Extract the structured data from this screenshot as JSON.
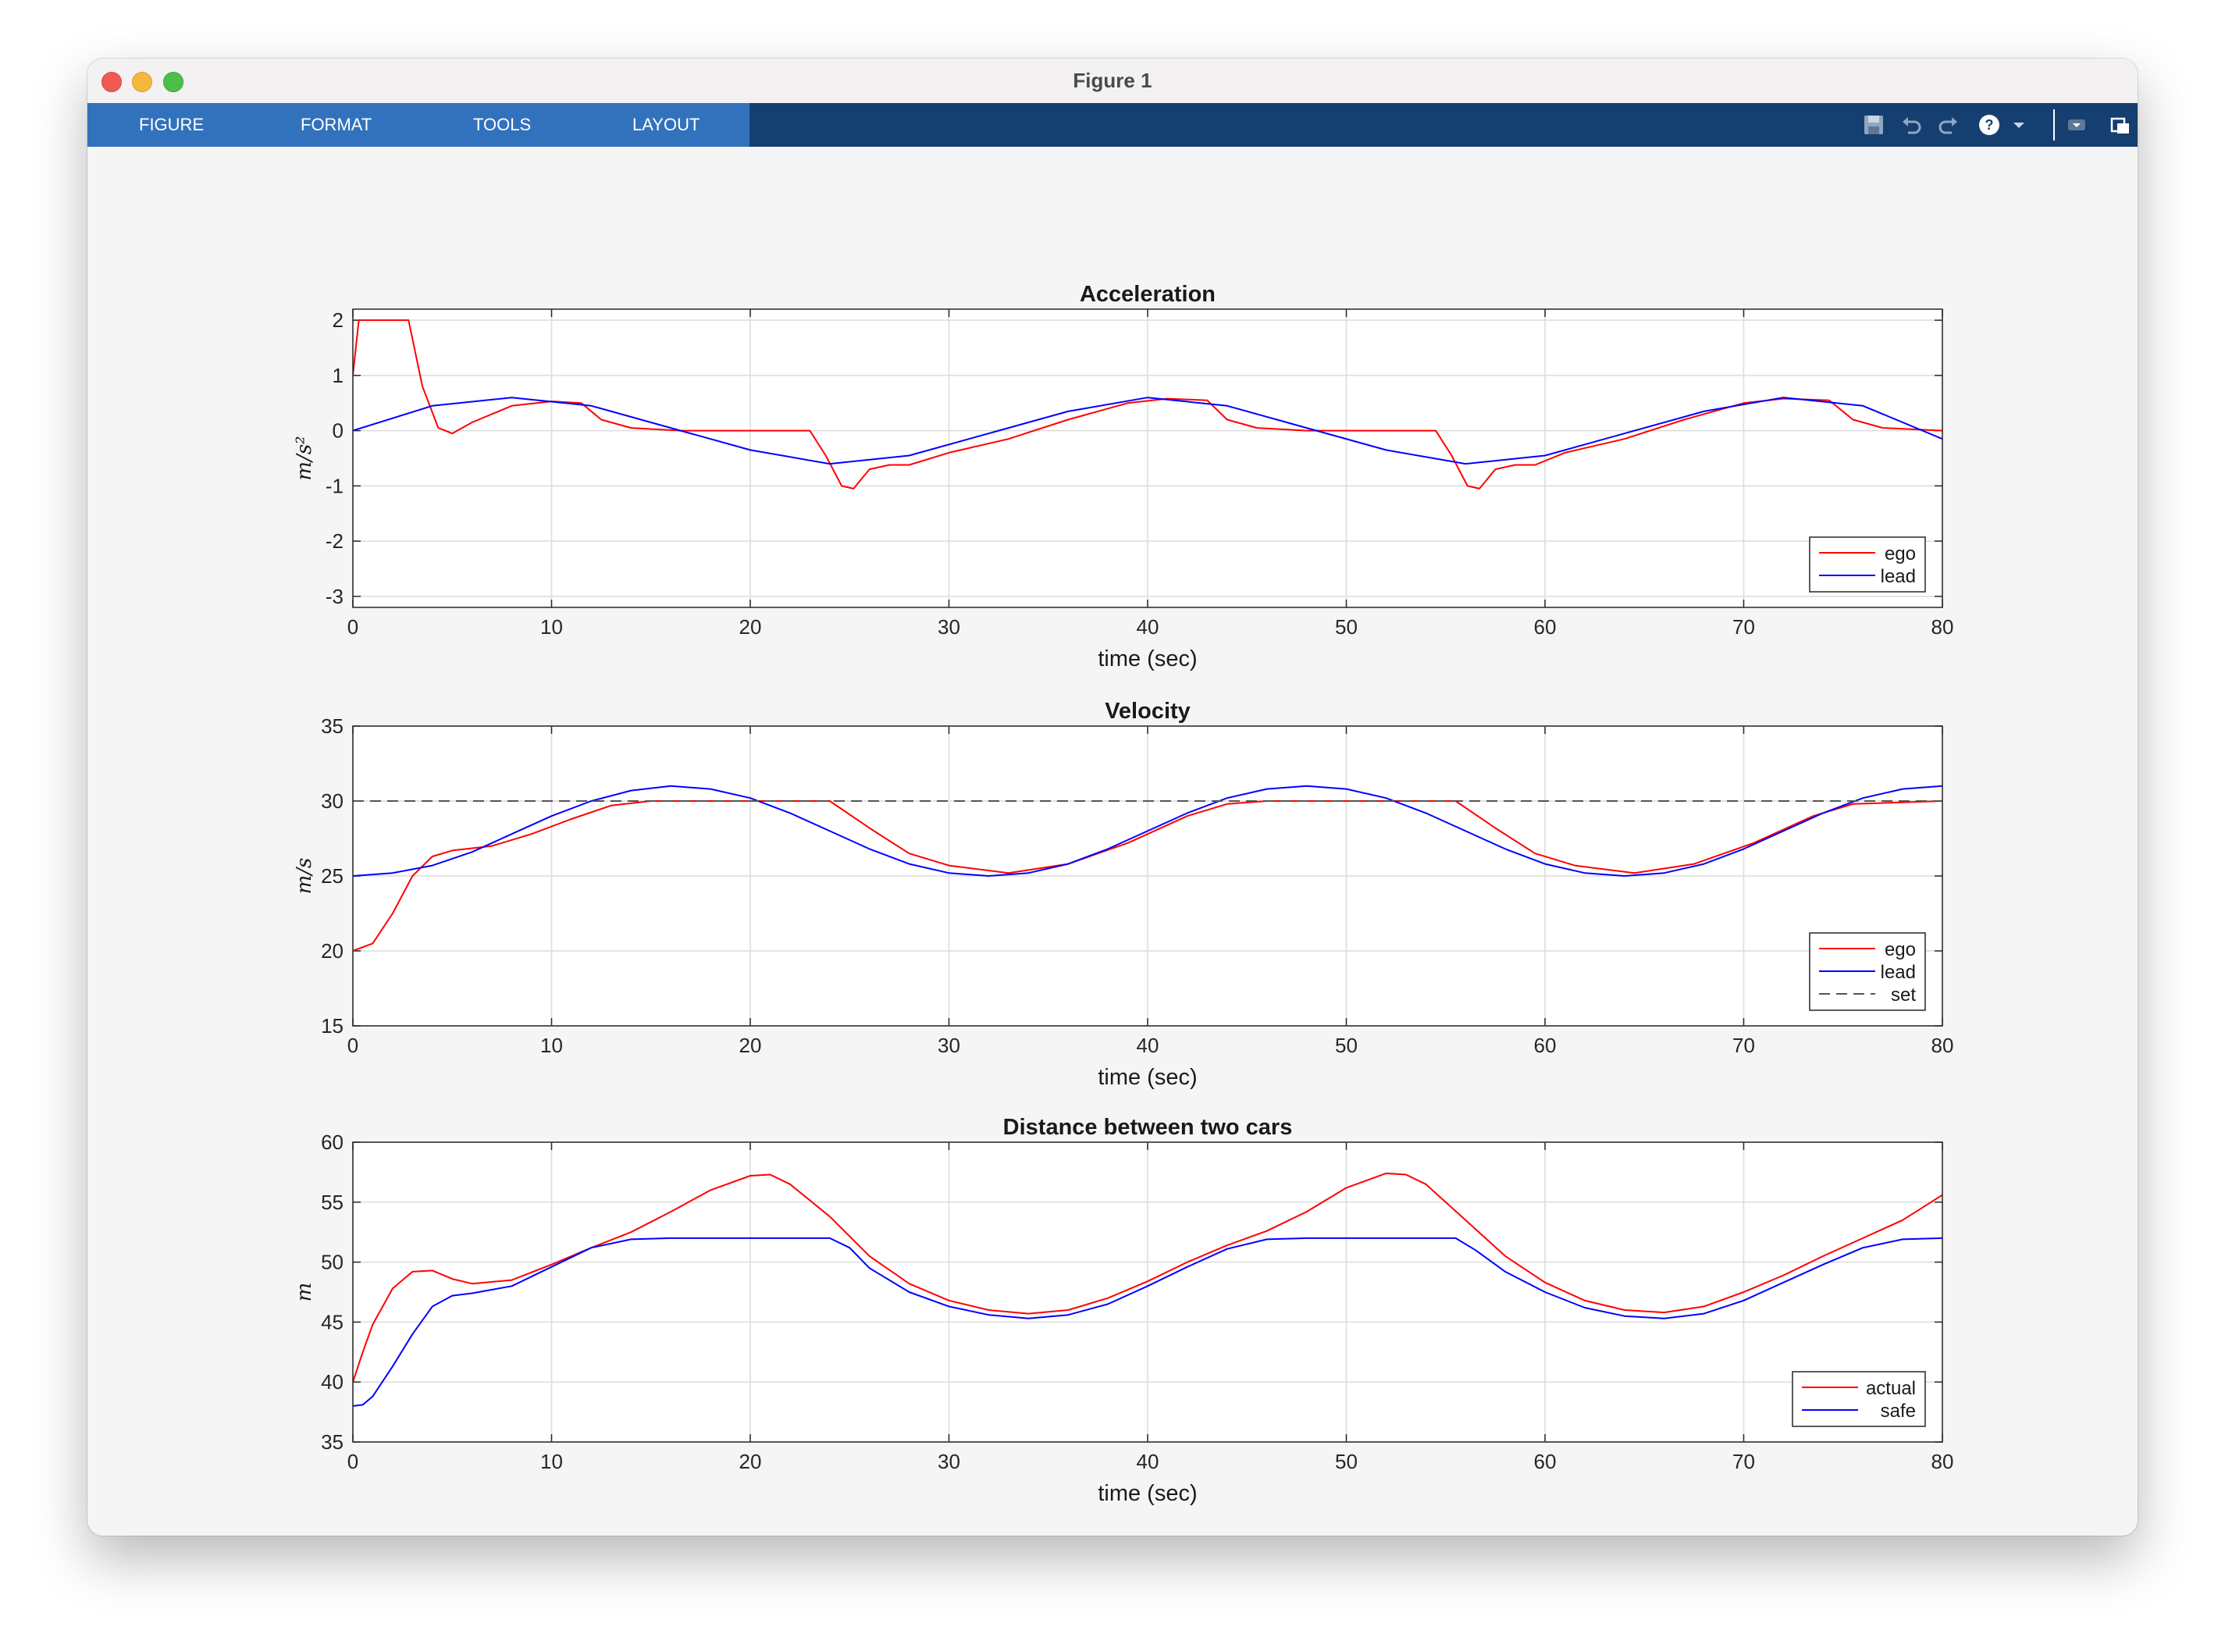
{
  "window": {
    "title": "Figure 1"
  },
  "toolstrip": {
    "tabs": [
      "FIGURE",
      "FORMAT",
      "TOOLS",
      "LAYOUT"
    ],
    "icons": [
      "save-icon",
      "undo-icon",
      "redo-icon",
      "help-icon",
      "help-dropdown-icon",
      "quick-access-dropdown-icon",
      "undock-icon"
    ]
  },
  "colors": {
    "ego": "#ff0000",
    "lead": "#0000ff",
    "set": "#555555",
    "tab_bar": "#3272bd",
    "toolstrip": "#153f70"
  },
  "chart_data": [
    {
      "type": "line",
      "title": "Acceleration",
      "xlabel": "time (sec)",
      "ylabel": "m/s²",
      "xlim": [
        0,
        80
      ],
      "ylim": [
        -3.2,
        2.2
      ],
      "xticks": [
        "0",
        "10",
        "20",
        "30",
        "40",
        "50",
        "60",
        "70",
        "80"
      ],
      "yticks": [
        "2",
        "1",
        "0",
        "-1",
        "-2",
        "-3"
      ],
      "grid": true,
      "legend": "bottom-right",
      "series": [
        {
          "name": "ego",
          "color": "#ff0000",
          "dash": "",
          "points": [
            [
              0,
              1.0
            ],
            [
              0.3,
              2.0
            ],
            [
              2.8,
              2.0
            ],
            [
              3.5,
              0.8
            ],
            [
              4.3,
              0.05
            ],
            [
              5,
              -0.05
            ],
            [
              6,
              0.15
            ],
            [
              8,
              0.45
            ],
            [
              10,
              0.53
            ],
            [
              11.5,
              0.5
            ],
            [
              12.5,
              0.2
            ],
            [
              14,
              0.05
            ],
            [
              16.5,
              0.0
            ],
            [
              23,
              0.0
            ],
            [
              23.8,
              -0.45
            ],
            [
              24.6,
              -1.0
            ],
            [
              25.2,
              -1.05
            ],
            [
              26,
              -0.7
            ],
            [
              27,
              -0.62
            ],
            [
              28,
              -0.62
            ],
            [
              30,
              -0.4
            ],
            [
              33,
              -0.15
            ],
            [
              36,
              0.2
            ],
            [
              39,
              0.5
            ],
            [
              41,
              0.58
            ],
            [
              43,
              0.55
            ],
            [
              44,
              0.2
            ],
            [
              45.5,
              0.05
            ],
            [
              48,
              0.0
            ],
            [
              54.5,
              0.0
            ],
            [
              55.3,
              -0.45
            ],
            [
              56.1,
              -1.0
            ],
            [
              56.7,
              -1.05
            ],
            [
              57.5,
              -0.7
            ],
            [
              58.5,
              -0.62
            ],
            [
              59.5,
              -0.62
            ],
            [
              61,
              -0.4
            ],
            [
              64,
              -0.15
            ],
            [
              67,
              0.2
            ],
            [
              70,
              0.5
            ],
            [
              72,
              0.58
            ],
            [
              74.3,
              0.55
            ],
            [
              75.5,
              0.2
            ],
            [
              77,
              0.05
            ],
            [
              80,
              0.0
            ]
          ]
        },
        {
          "name": "lead",
          "color": "#0000ff",
          "dash": "",
          "points": [
            [
              0,
              0.0
            ],
            [
              4,
              0.45
            ],
            [
              8,
              0.6
            ],
            [
              12,
              0.45
            ],
            [
              16,
              0.05
            ],
            [
              20,
              -0.35
            ],
            [
              24,
              -0.6
            ],
            [
              28,
              -0.45
            ],
            [
              32,
              -0.05
            ],
            [
              36,
              0.35
            ],
            [
              40,
              0.6
            ],
            [
              44,
              0.45
            ],
            [
              48,
              0.05
            ],
            [
              52,
              -0.35
            ],
            [
              56,
              -0.6
            ],
            [
              60,
              -0.45
            ],
            [
              64,
              -0.05
            ],
            [
              68,
              0.35
            ],
            [
              72,
              0.6
            ],
            [
              76,
              0.45
            ],
            [
              80,
              -0.15
            ]
          ]
        }
      ]
    },
    {
      "type": "line",
      "title": "Velocity",
      "xlabel": "time (sec)",
      "ylabel": "m/s",
      "xlim": [
        0,
        80
      ],
      "ylim": [
        15,
        35
      ],
      "xticks": [
        "0",
        "10",
        "20",
        "30",
        "40",
        "50",
        "60",
        "70",
        "80"
      ],
      "yticks": [
        "35",
        "30",
        "25",
        "20",
        "15"
      ],
      "grid": true,
      "legend": "bottom-right",
      "series": [
        {
          "name": "ego",
          "color": "#ff0000",
          "dash": "",
          "points": [
            [
              0,
              20.0
            ],
            [
              1,
              20.5
            ],
            [
              2,
              22.5
            ],
            [
              3,
              25.0
            ],
            [
              4,
              26.3
            ],
            [
              5,
              26.7
            ],
            [
              7,
              27.0
            ],
            [
              9,
              27.8
            ],
            [
              11,
              28.8
            ],
            [
              13,
              29.7
            ],
            [
              15,
              30.0
            ],
            [
              24,
              30.0
            ],
            [
              26,
              28.2
            ],
            [
              28,
              26.5
            ],
            [
              30,
              25.7
            ],
            [
              33,
              25.2
            ],
            [
              36,
              25.8
            ],
            [
              39,
              27.2
            ],
            [
              42,
              29.0
            ],
            [
              44,
              29.8
            ],
            [
              46,
              30.0
            ],
            [
              55.5,
              30.0
            ],
            [
              57.5,
              28.2
            ],
            [
              59.5,
              26.5
            ],
            [
              61.5,
              25.7
            ],
            [
              64.5,
              25.2
            ],
            [
              67.5,
              25.8
            ],
            [
              70.5,
              27.2
            ],
            [
              73.5,
              29.0
            ],
            [
              75.5,
              29.8
            ],
            [
              80,
              30.0
            ]
          ]
        },
        {
          "name": "lead",
          "color": "#0000ff",
          "dash": "",
          "points": [
            [
              0,
              25.0
            ],
            [
              2,
              25.2
            ],
            [
              4,
              25.7
            ],
            [
              6,
              26.6
            ],
            [
              8,
              27.8
            ],
            [
              10,
              29.0
            ],
            [
              12,
              30.0
            ],
            [
              14,
              30.7
            ],
            [
              16,
              31.0
            ],
            [
              18,
              30.8
            ],
            [
              20,
              30.2
            ],
            [
              22,
              29.2
            ],
            [
              24,
              28.0
            ],
            [
              26,
              26.8
            ],
            [
              28,
              25.8
            ],
            [
              30,
              25.2
            ],
            [
              32,
              25.0
            ],
            [
              34,
              25.2
            ],
            [
              36,
              25.8
            ],
            [
              38,
              26.8
            ],
            [
              40,
              28.0
            ],
            [
              42,
              29.2
            ],
            [
              44,
              30.2
            ],
            [
              46,
              30.8
            ],
            [
              48,
              31.0
            ],
            [
              50,
              30.8
            ],
            [
              52,
              30.2
            ],
            [
              54,
              29.2
            ],
            [
              56,
              28.0
            ],
            [
              58,
              26.8
            ],
            [
              60,
              25.8
            ],
            [
              62,
              25.2
            ],
            [
              64,
              25.0
            ],
            [
              66,
              25.2
            ],
            [
              68,
              25.8
            ],
            [
              70,
              26.8
            ],
            [
              72,
              28.0
            ],
            [
              74,
              29.2
            ],
            [
              76,
              30.2
            ],
            [
              78,
              30.8
            ],
            [
              80,
              31.0
            ]
          ]
        },
        {
          "name": "set",
          "color": "#555555",
          "dash": "14,8",
          "points": [
            [
              0,
              30
            ],
            [
              80,
              30
            ]
          ]
        }
      ]
    },
    {
      "type": "line",
      "title": "Distance between two cars",
      "xlabel": "time (sec)",
      "ylabel": "m",
      "xlim": [
        0,
        80
      ],
      "ylim": [
        35,
        60
      ],
      "xticks": [
        "0",
        "10",
        "20",
        "30",
        "40",
        "50",
        "60",
        "70",
        "80"
      ],
      "yticks": [
        "60",
        "55",
        "50",
        "45",
        "40",
        "35"
      ],
      "grid": true,
      "legend": "bottom-right",
      "series": [
        {
          "name": "actual",
          "color": "#ff0000",
          "dash": "",
          "points": [
            [
              0,
              40.0
            ],
            [
              0.5,
              42.5
            ],
            [
              1,
              44.8
            ],
            [
              2,
              47.8
            ],
            [
              3,
              49.2
            ],
            [
              4,
              49.3
            ],
            [
              5,
              48.6
            ],
            [
              6,
              48.2
            ],
            [
              8,
              48.5
            ],
            [
              10,
              49.8
            ],
            [
              12,
              51.2
            ],
            [
              14,
              52.5
            ],
            [
              16,
              54.2
            ],
            [
              18,
              56.0
            ],
            [
              20,
              57.2
            ],
            [
              21,
              57.3
            ],
            [
              22,
              56.5
            ],
            [
              24,
              53.8
            ],
            [
              26,
              50.5
            ],
            [
              28,
              48.2
            ],
            [
              30,
              46.8
            ],
            [
              32,
              46.0
            ],
            [
              34,
              45.7
            ],
            [
              36,
              46.0
            ],
            [
              38,
              47.0
            ],
            [
              40,
              48.4
            ],
            [
              42,
              50.0
            ],
            [
              44,
              51.4
            ],
            [
              46,
              52.6
            ],
            [
              48,
              54.2
            ],
            [
              50,
              56.2
            ],
            [
              52,
              57.4
            ],
            [
              53,
              57.3
            ],
            [
              54,
              56.5
            ],
            [
              56,
              53.5
            ],
            [
              58,
              50.5
            ],
            [
              60,
              48.3
            ],
            [
              62,
              46.8
            ],
            [
              64,
              46.0
            ],
            [
              66,
              45.8
            ],
            [
              68,
              46.3
            ],
            [
              70,
              47.5
            ],
            [
              72,
              48.9
            ],
            [
              74,
              50.5
            ],
            [
              76,
              52.0
            ],
            [
              78,
              53.5
            ],
            [
              80,
              55.6
            ]
          ]
        },
        {
          "name": "safe",
          "color": "#0000ff",
          "dash": "",
          "points": [
            [
              0,
              38.0
            ],
            [
              0.5,
              38.1
            ],
            [
              1,
              38.8
            ],
            [
              2,
              41.3
            ],
            [
              3,
              44.0
            ],
            [
              4,
              46.3
            ],
            [
              5,
              47.2
            ],
            [
              6,
              47.4
            ],
            [
              8,
              48.0
            ],
            [
              10,
              49.6
            ],
            [
              12,
              51.2
            ],
            [
              14,
              51.9
            ],
            [
              16,
              52.0
            ],
            [
              24,
              52.0
            ],
            [
              25,
              51.2
            ],
            [
              26,
              49.5
            ],
            [
              28,
              47.5
            ],
            [
              30,
              46.3
            ],
            [
              32,
              45.6
            ],
            [
              34,
              45.3
            ],
            [
              36,
              45.6
            ],
            [
              38,
              46.5
            ],
            [
              40,
              48.0
            ],
            [
              42,
              49.6
            ],
            [
              44,
              51.1
            ],
            [
              46,
              51.9
            ],
            [
              48,
              52.0
            ],
            [
              55.5,
              52.0
            ],
            [
              56.5,
              51.0
            ],
            [
              58,
              49.2
            ],
            [
              60,
              47.5
            ],
            [
              62,
              46.2
            ],
            [
              64,
              45.5
            ],
            [
              66,
              45.3
            ],
            [
              68,
              45.7
            ],
            [
              70,
              46.8
            ],
            [
              72,
              48.3
            ],
            [
              74,
              49.8
            ],
            [
              76,
              51.2
            ],
            [
              78,
              51.9
            ],
            [
              80,
              52.0
            ]
          ]
        }
      ]
    }
  ]
}
